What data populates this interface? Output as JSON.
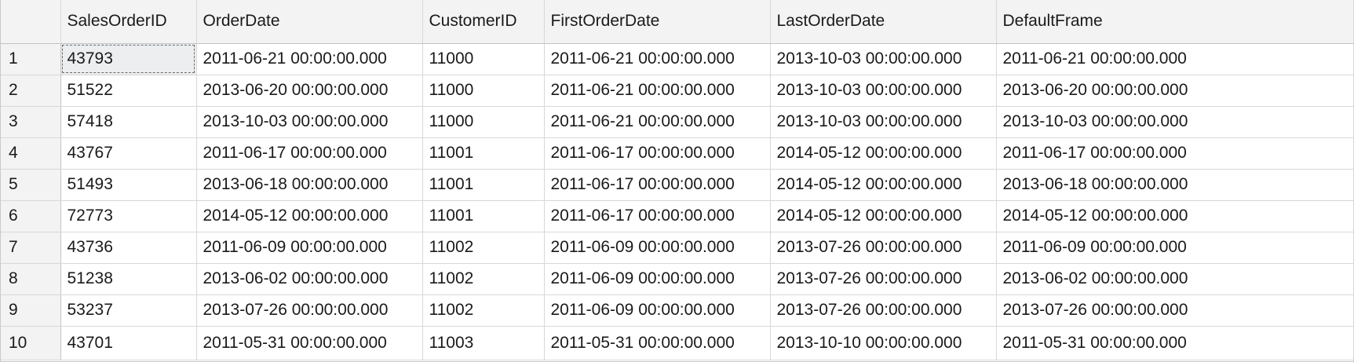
{
  "grid": {
    "columns": [
      "SalesOrderID",
      "OrderDate",
      "CustomerID",
      "FirstOrderDate",
      "LastOrderDate",
      "DefaultFrame"
    ],
    "selected_cell": {
      "row": 0,
      "col": 0
    },
    "rows": [
      {
        "num": "1",
        "cells": [
          "43793",
          "2011-06-21 00:00:00.000",
          "11000",
          "2011-06-21 00:00:00.000",
          "2013-10-03 00:00:00.000",
          "2011-06-21 00:00:00.000"
        ]
      },
      {
        "num": "2",
        "cells": [
          "51522",
          "2013-06-20 00:00:00.000",
          "11000",
          "2011-06-21 00:00:00.000",
          "2013-10-03 00:00:00.000",
          "2013-06-20 00:00:00.000"
        ]
      },
      {
        "num": "3",
        "cells": [
          "57418",
          "2013-10-03 00:00:00.000",
          "11000",
          "2011-06-21 00:00:00.000",
          "2013-10-03 00:00:00.000",
          "2013-10-03 00:00:00.000"
        ]
      },
      {
        "num": "4",
        "cells": [
          "43767",
          "2011-06-17 00:00:00.000",
          "11001",
          "2011-06-17 00:00:00.000",
          "2014-05-12 00:00:00.000",
          "2011-06-17 00:00:00.000"
        ]
      },
      {
        "num": "5",
        "cells": [
          "51493",
          "2013-06-18 00:00:00.000",
          "11001",
          "2011-06-17 00:00:00.000",
          "2014-05-12 00:00:00.000",
          "2013-06-18 00:00:00.000"
        ]
      },
      {
        "num": "6",
        "cells": [
          "72773",
          "2014-05-12 00:00:00.000",
          "11001",
          "2011-06-17 00:00:00.000",
          "2014-05-12 00:00:00.000",
          "2014-05-12 00:00:00.000"
        ]
      },
      {
        "num": "7",
        "cells": [
          "43736",
          "2011-06-09 00:00:00.000",
          "11002",
          "2011-06-09 00:00:00.000",
          "2013-07-26 00:00:00.000",
          "2011-06-09 00:00:00.000"
        ]
      },
      {
        "num": "8",
        "cells": [
          "51238",
          "2013-06-02 00:00:00.000",
          "11002",
          "2011-06-09 00:00:00.000",
          "2013-07-26 00:00:00.000",
          "2013-06-02 00:00:00.000"
        ]
      },
      {
        "num": "9",
        "cells": [
          "53237",
          "2013-07-26 00:00:00.000",
          "11002",
          "2011-06-09 00:00:00.000",
          "2013-07-26 00:00:00.000",
          "2013-07-26 00:00:00.000"
        ]
      },
      {
        "num": "10",
        "cells": [
          "43701",
          "2011-05-31 00:00:00.000",
          "11003",
          "2011-05-31 00:00:00.000",
          "2013-10-10 00:00:00.000",
          "2011-05-31 00:00:00.000"
        ]
      }
    ]
  }
}
